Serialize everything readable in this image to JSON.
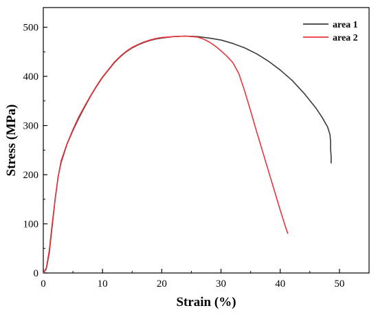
{
  "chart_data": {
    "type": "line",
    "title": "",
    "xlabel": "Strain (%)",
    "ylabel": "Stress (MPa)",
    "xlim": [
      0,
      55
    ],
    "ylim": [
      0,
      540
    ],
    "xticks": [
      0,
      10,
      20,
      30,
      40,
      50
    ],
    "yticks": [
      0,
      100,
      200,
      300,
      400,
      500
    ],
    "grid": false,
    "legend_position": "top-right",
    "series": [
      {
        "name": "area 1",
        "color": "#3a3a3a",
        "points": [
          [
            0,
            0
          ],
          [
            0.5,
            8
          ],
          [
            1.0,
            40
          ],
          [
            1.5,
            95
          ],
          [
            2.0,
            150
          ],
          [
            2.5,
            195
          ],
          [
            3.0,
            225
          ],
          [
            4.0,
            262
          ],
          [
            5.0,
            290
          ],
          [
            6.0,
            315
          ],
          [
            7.0,
            338
          ],
          [
            8.0,
            360
          ],
          [
            9.0,
            380
          ],
          [
            10.0,
            398
          ],
          [
            11.0,
            413
          ],
          [
            12.0,
            428
          ],
          [
            13.0,
            440
          ],
          [
            14.0,
            450
          ],
          [
            15.0,
            458
          ],
          [
            16.0,
            464
          ],
          [
            17.0,
            469
          ],
          [
            18.0,
            473
          ],
          [
            19.0,
            476
          ],
          [
            20.0,
            478
          ],
          [
            22.0,
            481
          ],
          [
            24.0,
            482
          ],
          [
            26.0,
            481
          ],
          [
            28.0,
            478
          ],
          [
            30.0,
            474
          ],
          [
            32.0,
            467
          ],
          [
            34.0,
            458
          ],
          [
            36.0,
            446
          ],
          [
            38.0,
            431
          ],
          [
            40.0,
            413
          ],
          [
            42.0,
            392
          ],
          [
            44.0,
            366
          ],
          [
            46.0,
            336
          ],
          [
            47.0,
            318
          ],
          [
            48.0,
            297
          ],
          [
            48.4,
            282
          ],
          [
            48.5,
            268
          ],
          [
            48.5,
            252
          ],
          [
            48.6,
            238
          ],
          [
            48.6,
            223
          ]
        ]
      },
      {
        "name": "area 2",
        "color": "#e8343a",
        "points": [
          [
            0,
            0
          ],
          [
            0.5,
            10
          ],
          [
            1.0,
            45
          ],
          [
            1.5,
            100
          ],
          [
            2.0,
            150
          ],
          [
            2.5,
            195
          ],
          [
            3.0,
            228
          ],
          [
            4.0,
            263
          ],
          [
            5.0,
            292
          ],
          [
            6.0,
            318
          ],
          [
            7.0,
            340
          ],
          [
            8.0,
            361
          ],
          [
            9.0,
            381
          ],
          [
            10.0,
            399
          ],
          [
            11.0,
            414
          ],
          [
            12.0,
            429
          ],
          [
            13.0,
            441
          ],
          [
            14.0,
            451
          ],
          [
            15.0,
            459
          ],
          [
            16.0,
            465
          ],
          [
            17.0,
            470
          ],
          [
            18.0,
            474
          ],
          [
            19.0,
            477
          ],
          [
            20.0,
            479
          ],
          [
            22.0,
            481
          ],
          [
            24.0,
            482
          ],
          [
            26.0,
            480
          ],
          [
            27.0,
            476
          ],
          [
            28.0,
            470
          ],
          [
            29.0,
            462
          ],
          [
            30.0,
            452
          ],
          [
            31.0,
            441
          ],
          [
            32.0,
            428
          ],
          [
            33.0,
            406
          ],
          [
            34.0,
            370
          ],
          [
            35.0,
            330
          ],
          [
            36.0,
            288
          ],
          [
            37.0,
            248
          ],
          [
            38.0,
            208
          ],
          [
            39.0,
            168
          ],
          [
            40.0,
            128
          ],
          [
            41.0,
            90
          ],
          [
            41.3,
            80
          ]
        ]
      }
    ]
  }
}
